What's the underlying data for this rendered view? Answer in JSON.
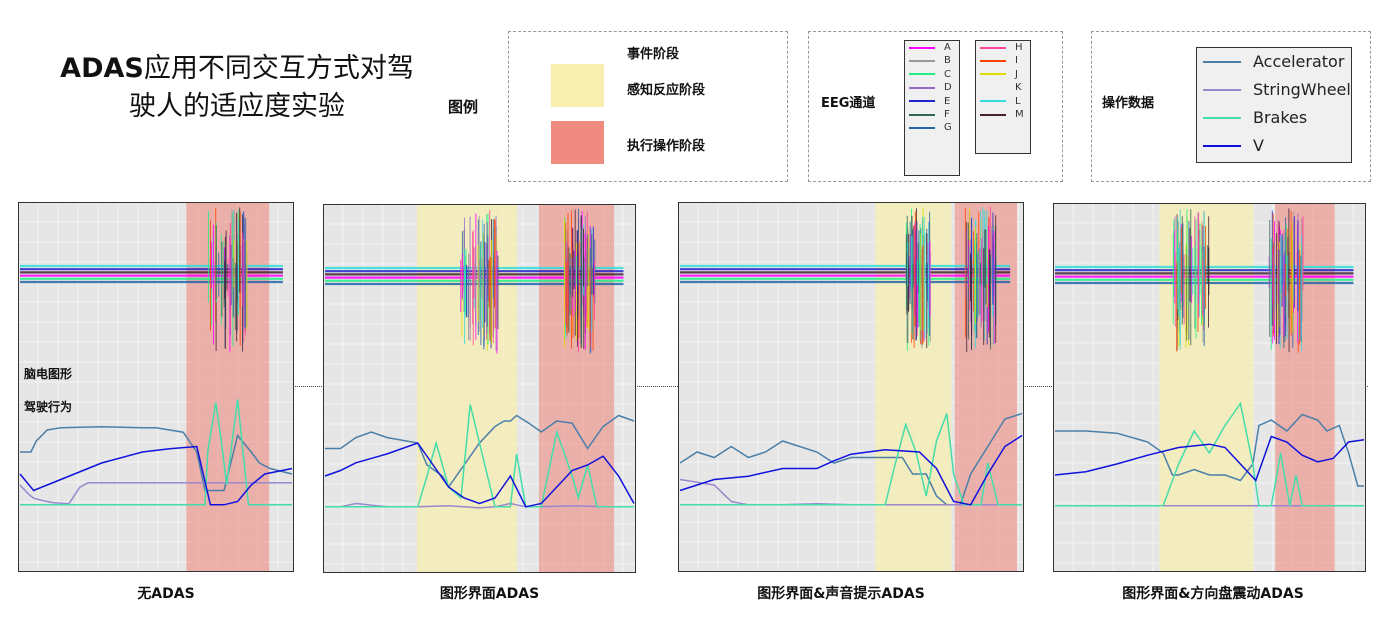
{
  "title": {
    "line1_bold": "ADAS",
    "line1_rest": "应用不同交互方式对驾",
    "line2": "驶人的适应度实验"
  },
  "legend_label": "图例",
  "legend_event": {
    "header": "事件阶段",
    "items": [
      {
        "label": "感知反应阶段",
        "color": "#f7eeb0"
      },
      {
        "label": "执行操作阶段",
        "color": "#ef8b80"
      }
    ]
  },
  "legend_eeg": {
    "header": "EEG通道",
    "col1": [
      {
        "label": "A",
        "color": "#ff00ff"
      },
      {
        "label": "B",
        "color": "#999999"
      },
      {
        "label": "C",
        "color": "#22ee88"
      },
      {
        "label": "D",
        "color": "#9966cc"
      },
      {
        "label": "E",
        "color": "#2222cc"
      },
      {
        "label": "F",
        "color": "#336655"
      },
      {
        "label": "G",
        "color": "#2266aa"
      }
    ],
    "col2": [
      {
        "label": "H",
        "color": "#ff4499"
      },
      {
        "label": "I",
        "color": "#ff4400"
      },
      {
        "label": "J",
        "color": "#dddd00"
      },
      {
        "label": "K",
        "color": "#f4f4f4"
      },
      {
        "label": "L",
        "color": "#33dddd"
      },
      {
        "label": "M",
        "color": "#442233"
      }
    ]
  },
  "legend_op": {
    "header": "操作数据",
    "items": [
      {
        "label": "Accelerator",
        "color": "#4a7fa8"
      },
      {
        "label": "StringWheel",
        "color": "#9988cc"
      },
      {
        "label": "Brakes",
        "color": "#44ddaa"
      },
      {
        "label": "V",
        "color": "#1111dd"
      }
    ]
  },
  "section_labels": {
    "eeg": "脑电图形",
    "driving": "驾驶行为"
  },
  "chart_data": [
    {
      "type": "line",
      "title": "无ADAS",
      "phases": [
        {
          "name": "执行操作阶段",
          "start": 0.61,
          "end": 0.91
        }
      ],
      "eeg_bursts": [
        [
          0.69,
          0.83
        ]
      ],
      "series": [
        {
          "name": "Accelerator",
          "x": [
            0,
            0.04,
            0.06,
            0.1,
            0.15,
            0.3,
            0.45,
            0.5,
            0.6,
            0.65,
            0.68,
            0.7,
            0.75,
            0.8,
            0.85,
            0.88,
            0.92,
            1
          ],
          "y": [
            0.5,
            0.5,
            0.6,
            0.7,
            0.72,
            0.73,
            0.72,
            0.72,
            0.68,
            0.5,
            0.15,
            0.15,
            0.15,
            0.65,
            0.5,
            0.4,
            0.35,
            0.3
          ]
        },
        {
          "name": "StringWheel",
          "x": [
            0,
            0.03,
            0.05,
            0.08,
            0.12,
            0.18,
            0.22,
            0.25,
            1
          ],
          "y": [
            0.2,
            0.12,
            0.08,
            0.06,
            0.04,
            0.03,
            0.18,
            0.22,
            0.22
          ]
        },
        {
          "name": "Brakes",
          "x": [
            0,
            0.68,
            0.69,
            0.72,
            0.74,
            0.76,
            0.78,
            0.8,
            0.82,
            0.84,
            1
          ],
          "y": [
            0.02,
            0.02,
            0.5,
            0.95,
            0.6,
            0.2,
            0.6,
            0.98,
            0.5,
            0.02,
            0.02
          ]
        },
        {
          "name": "V",
          "x": [
            0,
            0.05,
            0.15,
            0.3,
            0.45,
            0.55,
            0.65,
            0.7,
            0.75,
            0.8,
            0.85,
            0.9,
            1
          ],
          "y": [
            0.3,
            0.15,
            0.25,
            0.4,
            0.5,
            0.53,
            0.55,
            0.02,
            0.02,
            0.05,
            0.2,
            0.3,
            0.35
          ]
        }
      ]
    },
    {
      "type": "line",
      "title": "图形界面ADAS",
      "phases": [
        {
          "name": "感知反应阶段",
          "start": 0.3,
          "end": 0.62
        },
        {
          "name": "执行操作阶段",
          "start": 0.69,
          "end": 0.93
        }
      ],
      "eeg_bursts": [
        [
          0.44,
          0.56
        ],
        [
          0.77,
          0.87
        ]
      ],
      "series": [
        {
          "name": "Accelerator",
          "x": [
            0,
            0.05,
            0.1,
            0.15,
            0.2,
            0.3,
            0.33,
            0.38,
            0.4,
            0.45,
            0.5,
            0.55,
            0.58,
            0.6,
            0.62,
            0.66,
            0.7,
            0.75,
            0.8,
            0.85,
            0.9,
            0.95,
            1
          ],
          "y": [
            0.55,
            0.55,
            0.65,
            0.7,
            0.65,
            0.6,
            0.4,
            0.3,
            0.2,
            0.4,
            0.6,
            0.75,
            0.8,
            0.8,
            0.85,
            0.78,
            0.7,
            0.8,
            0.78,
            0.55,
            0.75,
            0.85,
            0.8
          ]
        },
        {
          "name": "StringWheel",
          "x": [
            0,
            0.05,
            0.1,
            0.2,
            0.3,
            0.4,
            0.45,
            0.5,
            0.55,
            0.6,
            0.65,
            0.7,
            0.8,
            0.9,
            1
          ],
          "y": [
            0.02,
            0.02,
            0.05,
            0.02,
            0.02,
            0.03,
            0.02,
            0.01,
            0.02,
            0.05,
            0.02,
            0.02,
            0.03,
            0.02,
            0.02
          ]
        },
        {
          "name": "Brakes",
          "x": [
            0,
            0.3,
            0.33,
            0.36,
            0.4,
            0.44,
            0.47,
            0.5,
            0.55,
            0.6,
            0.62,
            0.65,
            0.7,
            0.75,
            0.8,
            0.82,
            0.85,
            0.88,
            1
          ],
          "y": [
            0.02,
            0.02,
            0.3,
            0.6,
            0.2,
            0.1,
            0.95,
            0.6,
            0.02,
            0.02,
            0.5,
            0.02,
            0.02,
            0.7,
            0.3,
            0.1,
            0.4,
            0.02,
            0.02
          ]
        },
        {
          "name": "V",
          "x": [
            0,
            0.05,
            0.1,
            0.2,
            0.3,
            0.35,
            0.4,
            0.45,
            0.5,
            0.55,
            0.6,
            0.65,
            0.7,
            0.75,
            0.8,
            0.85,
            0.9,
            0.95,
            1
          ],
          "y": [
            0.3,
            0.35,
            0.42,
            0.5,
            0.6,
            0.4,
            0.2,
            0.1,
            0.05,
            0.1,
            0.3,
            0.02,
            0.05,
            0.2,
            0.35,
            0.4,
            0.48,
            0.3,
            0.05
          ]
        }
      ]
    },
    {
      "type": "line",
      "title": "图形界面&声音提示ADAS",
      "phases": [
        {
          "name": "感知反应阶段",
          "start": 0.57,
          "end": 0.79
        },
        {
          "name": "执行操作阶段",
          "start": 0.8,
          "end": 0.98
        }
      ],
      "eeg_bursts": [
        [
          0.66,
          0.73
        ],
        [
          0.83,
          0.92
        ]
      ],
      "series": [
        {
          "name": "Accelerator",
          "x": [
            0,
            0.05,
            0.1,
            0.15,
            0.2,
            0.25,
            0.3,
            0.35,
            0.4,
            0.45,
            0.5,
            0.55,
            0.6,
            0.65,
            0.68,
            0.72,
            0.75,
            0.78,
            0.82,
            0.85,
            0.9,
            0.95,
            1
          ],
          "y": [
            0.4,
            0.5,
            0.45,
            0.55,
            0.45,
            0.5,
            0.6,
            0.55,
            0.5,
            0.4,
            0.45,
            0.45,
            0.45,
            0.45,
            0.3,
            0.3,
            0.1,
            0.02,
            0.02,
            0.3,
            0.55,
            0.8,
            0.85
          ]
        },
        {
          "name": "StringWheel",
          "x": [
            0,
            0.1,
            0.15,
            0.2,
            0.3,
            0.4,
            0.5,
            0.6,
            0.8,
            1
          ],
          "y": [
            0.25,
            0.2,
            0.05,
            0.02,
            0.02,
            0.03,
            0.02,
            0.02,
            0.02,
            0.02
          ]
        },
        {
          "name": "Brakes",
          "x": [
            0,
            0.6,
            0.63,
            0.66,
            0.69,
            0.72,
            0.75,
            0.78,
            0.8,
            0.83,
            0.86,
            0.88,
            0.9,
            0.93,
            1
          ],
          "y": [
            0.02,
            0.02,
            0.4,
            0.75,
            0.5,
            0.1,
            0.6,
            0.85,
            0.3,
            0.02,
            0.02,
            0.02,
            0.4,
            0.02,
            0.02
          ]
        },
        {
          "name": "V",
          "x": [
            0,
            0.05,
            0.1,
            0.2,
            0.3,
            0.4,
            0.45,
            0.5,
            0.55,
            0.6,
            0.7,
            0.75,
            0.8,
            0.85,
            0.9,
            0.95,
            1
          ],
          "y": [
            0.15,
            0.2,
            0.25,
            0.28,
            0.35,
            0.35,
            0.42,
            0.48,
            0.5,
            0.52,
            0.5,
            0.35,
            0.05,
            0.02,
            0.3,
            0.55,
            0.65
          ]
        }
      ]
    },
    {
      "type": "line",
      "title": "图形界面&方向盘震动ADAS",
      "phases": [
        {
          "name": "感知反应阶段",
          "start": 0.34,
          "end": 0.64
        },
        {
          "name": "执行操作阶段",
          "start": 0.71,
          "end": 0.9
        }
      ],
      "eeg_bursts": [
        [
          0.38,
          0.5
        ],
        [
          0.69,
          0.8
        ]
      ],
      "series": [
        {
          "name": "Accelerator",
          "x": [
            0,
            0.1,
            0.2,
            0.3,
            0.35,
            0.38,
            0.4,
            0.45,
            0.5,
            0.55,
            0.6,
            0.64,
            0.66,
            0.7,
            0.75,
            0.8,
            0.85,
            0.88,
            0.92,
            0.95,
            0.98,
            1
          ],
          "y": [
            0.7,
            0.7,
            0.68,
            0.6,
            0.5,
            0.3,
            0.3,
            0.35,
            0.3,
            0.3,
            0.25,
            0.4,
            0.75,
            0.8,
            0.7,
            0.85,
            0.8,
            0.7,
            0.75,
            0.5,
            0.2,
            0.2
          ]
        },
        {
          "name": "StringWheel",
          "x": [
            0,
            0.2,
            0.4,
            0.6,
            0.8,
            1
          ],
          "y": [
            0.02,
            0.02,
            0.02,
            0.02,
            0.02,
            0.02
          ]
        },
        {
          "name": "Brakes",
          "x": [
            0,
            0.35,
            0.4,
            0.45,
            0.5,
            0.55,
            0.6,
            0.64,
            0.66,
            0.7,
            0.73,
            0.76,
            0.78,
            0.8,
            0.85,
            1
          ],
          "y": [
            0.02,
            0.02,
            0.4,
            0.7,
            0.5,
            0.75,
            0.95,
            0.4,
            0.02,
            0.02,
            0.5,
            0.02,
            0.3,
            0.02,
            0.02,
            0.02
          ]
        },
        {
          "name": "V",
          "x": [
            0,
            0.1,
            0.2,
            0.3,
            0.4,
            0.5,
            0.55,
            0.6,
            0.65,
            0.7,
            0.75,
            0.8,
            0.85,
            0.9,
            0.95,
            1
          ],
          "y": [
            0.3,
            0.33,
            0.4,
            0.48,
            0.55,
            0.58,
            0.55,
            0.4,
            0.25,
            0.65,
            0.6,
            0.48,
            0.42,
            0.45,
            0.6,
            0.62
          ]
        }
      ]
    }
  ]
}
